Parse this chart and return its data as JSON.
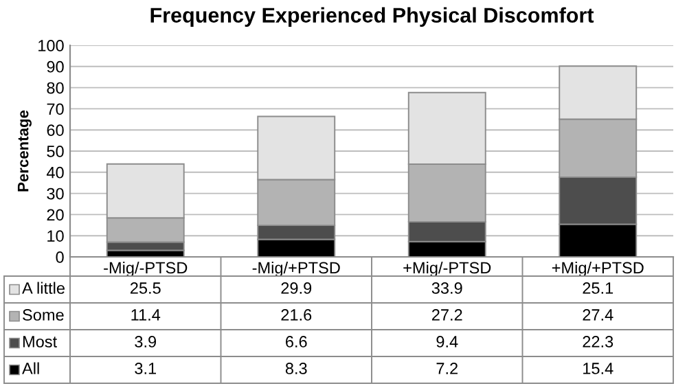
{
  "chart_data": {
    "type": "bar",
    "title": "Frequency Experienced Physical Discomfort",
    "ylabel": "Percentage",
    "categories": [
      "-Mig/-PTSD",
      "-Mig/+PTSD",
      "+Mig/-PTSD",
      "+Mig/+PTSD"
    ],
    "stacked": true,
    "series": [
      {
        "name": "All",
        "color": "#000000",
        "values": [
          3.1,
          8.3,
          7.2,
          15.4
        ]
      },
      {
        "name": "Most",
        "color": "#4d4d4d",
        "values": [
          3.9,
          6.6,
          9.4,
          22.3
        ]
      },
      {
        "name": "Some",
        "color": "#b3b3b3",
        "values": [
          11.4,
          21.6,
          27.2,
          27.4
        ]
      },
      {
        "name": "A little",
        "color": "#e3e3e3",
        "values": [
          25.5,
          29.9,
          33.9,
          25.1
        ]
      }
    ],
    "ylim": [
      0,
      100
    ],
    "yticks": [
      0,
      10,
      20,
      30,
      40,
      50,
      60,
      70,
      80,
      90,
      100
    ],
    "grid": "y",
    "legend": "bottom left",
    "data_labels": true
  }
}
